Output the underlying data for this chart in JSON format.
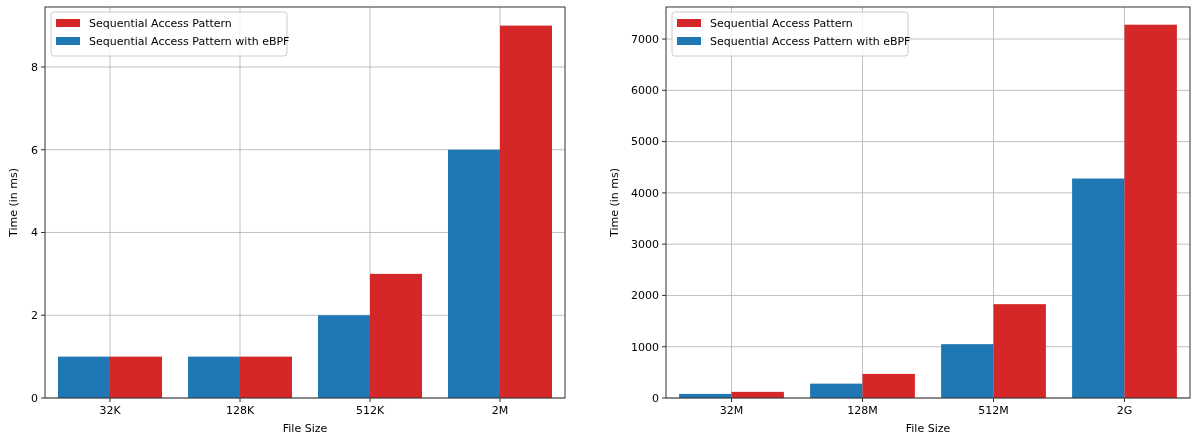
{
  "chart_data": [
    {
      "type": "bar",
      "xlabel": "File Size",
      "ylabel": "Time (in ms)",
      "categories": [
        "32K",
        "128K",
        "512K",
        "2M"
      ],
      "series": [
        {
          "name": "Sequential Access Pattern with eBPF",
          "color": "#1f77b4",
          "values": [
            1,
            1,
            2,
            6
          ]
        },
        {
          "name": "Sequential Access Pattern",
          "color": "#d62728",
          "values": [
            1,
            1,
            3,
            9
          ]
        }
      ],
      "ylim": [
        0,
        9.45
      ],
      "yticks": [
        0,
        2,
        4,
        6,
        8
      ],
      "grid": true,
      "legend": "top left"
    },
    {
      "type": "bar",
      "xlabel": "File Size",
      "ylabel": "Time (in ms)",
      "categories": [
        "32M",
        "128M",
        "512M",
        "2G"
      ],
      "series": [
        {
          "name": "Sequential Access Pattern with eBPF",
          "color": "#1f77b4",
          "values": [
            80,
            280,
            1050,
            4280
          ]
        },
        {
          "name": "Sequential Access Pattern",
          "color": "#d62728",
          "values": [
            120,
            470,
            1830,
            7280
          ]
        }
      ],
      "ylim": [
        0,
        7625
      ],
      "yticks": [
        0,
        1000,
        2000,
        3000,
        4000,
        5000,
        6000,
        7000
      ],
      "grid": true,
      "legend": "top left"
    }
  ]
}
